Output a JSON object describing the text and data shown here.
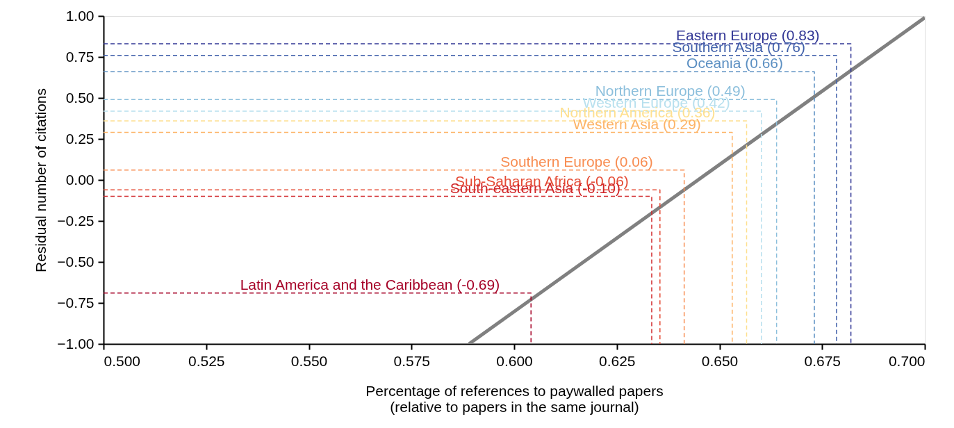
{
  "chart_data": {
    "type": "line",
    "xlabel": "Percentage of references to paywalled papers\n(relative to papers in the same journal)",
    "ylabel": "Residual number of citations",
    "xlim": [
      0.5,
      0.7
    ],
    "ylim": [
      -1,
      1
    ],
    "xticks": [
      {
        "value": 0.5,
        "label": "0.500"
      },
      {
        "value": 0.525,
        "label": "0.525"
      },
      {
        "value": 0.55,
        "label": "0.550"
      },
      {
        "value": 0.575,
        "label": "0.575"
      },
      {
        "value": 0.6,
        "label": "0.600"
      },
      {
        "value": 0.625,
        "label": "0.625"
      },
      {
        "value": 0.65,
        "label": "0.650"
      },
      {
        "value": 0.675,
        "label": "0.675"
      },
      {
        "value": 0.7,
        "label": "0.700"
      }
    ],
    "yticks": [
      {
        "value": -1,
        "label": "−1.00"
      },
      {
        "value": -0.75,
        "label": "−0.75"
      },
      {
        "value": -0.5,
        "label": "−0.50"
      },
      {
        "value": -0.25,
        "label": "−0.25"
      },
      {
        "value": 0,
        "label": "0.00"
      },
      {
        "value": 0.25,
        "label": "0.25"
      },
      {
        "value": 0.5,
        "label": "0.50"
      },
      {
        "value": 0.75,
        "label": "0.75"
      },
      {
        "value": 1,
        "label": "1.00"
      }
    ],
    "line_style": "dashed",
    "series": [
      {
        "color": "#808080",
        "x": [
          0.589,
          0.7
        ],
        "values": [
          -1,
          0.99
        ],
        "line_style": "solid"
      },
      {
        "name": "Eastern Europe (0.83)",
        "color": "#313695",
        "x": [
          0.5,
          0.682,
          0.682
        ],
        "values": [
          0.83,
          0.83,
          -1
        ]
      },
      {
        "name": "Southern Asia (0.76)",
        "color": "#4060aa",
        "x": [
          0.5,
          0.6785,
          0.6785
        ],
        "values": [
          0.76,
          0.76,
          -1
        ]
      },
      {
        "name": "Oceania (0.66)",
        "color": "#5b8fc2",
        "x": [
          0.5,
          0.6731,
          0.6731
        ],
        "values": [
          0.66,
          0.66,
          -1
        ]
      },
      {
        "name": "Northern Europe (0.49)",
        "color": "#8cbfdc",
        "x": [
          0.5,
          0.6639,
          0.6639
        ],
        "values": [
          0.49,
          0.49,
          -1
        ]
      },
      {
        "name": "Western Europe (0.42)",
        "color": "#b8e0ee",
        "x": [
          0.5,
          0.6602,
          0.6602
        ],
        "values": [
          0.42,
          0.42,
          -1
        ]
      },
      {
        "name": "Northern America (0.36)",
        "color": "#fee090",
        "x": [
          0.5,
          0.6566,
          0.6566
        ],
        "values": [
          0.36,
          0.36,
          -1
        ]
      },
      {
        "name": "Western Asia (0.29)",
        "color": "#fdb366",
        "x": [
          0.5,
          0.6531,
          0.6531
        ],
        "values": [
          0.29,
          0.29,
          -1
        ]
      },
      {
        "name": "Southern Europe (0.06)",
        "color": "#f88d52",
        "x": [
          0.5,
          0.6414,
          0.6414
        ],
        "values": [
          0.06,
          0.06,
          -1
        ]
      },
      {
        "name": "Sub-Saharan Africa (-0.06)",
        "color": "#e54b35",
        "x": [
          0.5,
          0.6355,
          0.6355
        ],
        "values": [
          -0.06,
          -0.06,
          -1
        ]
      },
      {
        "name": "South-eastern Asia (-0.10)",
        "color": "#d0272a",
        "x": [
          0.5,
          0.6335,
          0.6335
        ],
        "values": [
          -0.1,
          -0.1,
          -1
        ]
      },
      {
        "name": "Latin America and the Caribbean (-0.69)",
        "color": "#a50026",
        "x": [
          0.5,
          0.6041,
          0.6041
        ],
        "values": [
          -0.69,
          -0.69,
          -1
        ]
      }
    ]
  }
}
